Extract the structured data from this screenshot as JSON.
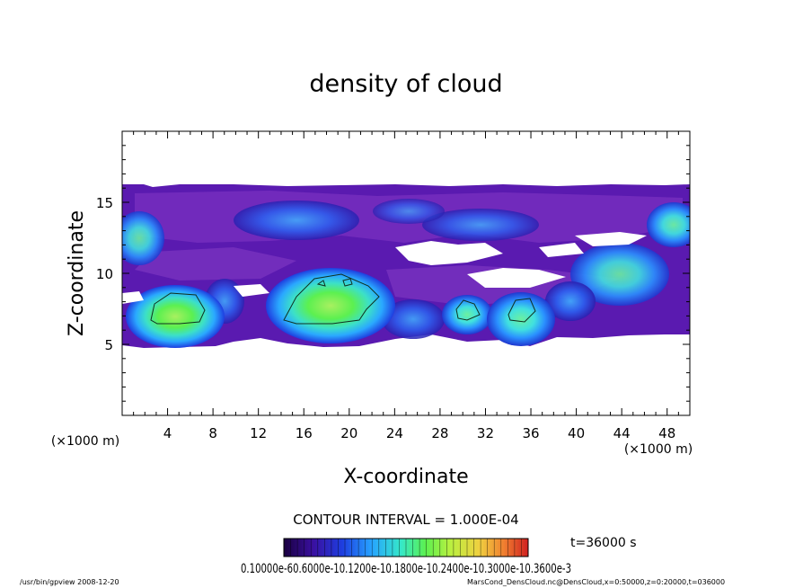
{
  "chart_data": {
    "type": "heatmap",
    "title": "density of cloud",
    "xlabel": "X-coordinate",
    "ylabel": "Z-coordinate",
    "x_unit": "(×1000 m)",
    "y_unit": "(×1000 m)",
    "xlim": [
      0,
      50
    ],
    "ylim": [
      0,
      20
    ],
    "xticks": [
      4,
      8,
      12,
      16,
      20,
      24,
      28,
      32,
      36,
      40,
      44,
      48
    ],
    "yticks": [
      5,
      10,
      15
    ],
    "contour_interval": "CONTOUR INTERVAL = 1.000E-04",
    "time_label": "t=36000 s",
    "colorbar_labels": "0.10000e-60.6000e-10.1200e-10.1800e-10.2400e-10.3000e-10.3600e-3",
    "colorbar_label_list": [
      "0.1000",
      "0.600e-4",
      "0.1200e-3",
      "0.1800e-3",
      "0.2400e-3",
      "0.3000e-3",
      "0.3600e-3"
    ],
    "colorbar_colors": [
      "#1a0040",
      "#3a10a0",
      "#1e3ee0",
      "#27a4ff",
      "#36e8c8",
      "#5cf050",
      "#b8f040",
      "#f0d040",
      "#f08030",
      "#d02020"
    ],
    "cloud_layer_z": [
      6,
      16
    ],
    "high_density_regions": [
      {
        "x_center": 5,
        "z_center": 7.5,
        "level": "high"
      },
      {
        "x_center": 19,
        "z_center": 8.5,
        "level": "high"
      },
      {
        "x_center": 30.5,
        "z_center": 7.3,
        "level": "medium"
      },
      {
        "x_center": 35,
        "z_center": 7.5,
        "level": "medium"
      },
      {
        "x_center": 49,
        "z_center": 13.5,
        "level": "medium"
      }
    ]
  },
  "footer": {
    "left": "/usr/bin/gpview   2008-12-20",
    "right": "MarsCond_DensCloud.nc@DensCloud,x=0:50000,z=0:20000,t=036000"
  }
}
